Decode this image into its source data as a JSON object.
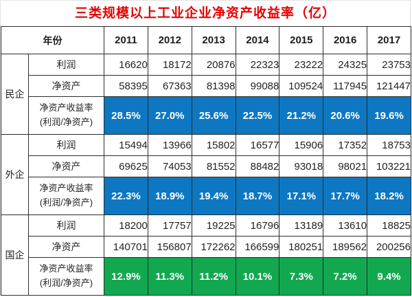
{
  "title": "三类规模以上工业企业净资产收益率（亿）",
  "colors": {
    "title_red": "#e60000",
    "roe_blue": "#0d77c2",
    "roe_green": "#12a850",
    "border": "#2b2b2b",
    "roe_text": "#ffffff"
  },
  "table": {
    "header": {
      "year_label": "年份",
      "years": [
        "2011",
        "2012",
        "2013",
        "2014",
        "2015",
        "2016",
        "2017"
      ]
    },
    "row_labels": {
      "profit": "利润",
      "net_assets": "净资产",
      "roe_line1": "净资产收益率",
      "roe_line2": "(利润/净资产)"
    },
    "groups": [
      {
        "name": "民企",
        "roe_color": "blue",
        "profit": [
          "16620",
          "18172",
          "20876",
          "22323",
          "23222",
          "24325",
          "23753"
        ],
        "net_assets": [
          "58395",
          "67363",
          "81398",
          "99088",
          "109524",
          "117945",
          "121447"
        ],
        "roe": [
          "28.5%",
          "27.0%",
          "25.6%",
          "22.5%",
          "21.2%",
          "20.6%",
          "19.6%"
        ]
      },
      {
        "name": "外企",
        "roe_color": "blue",
        "profit": [
          "15494",
          "13966",
          "15802",
          "16577",
          "15906",
          "17352",
          "18753"
        ],
        "net_assets": [
          "69625",
          "74053",
          "81552",
          "88482",
          "93018",
          "98021",
          "103221"
        ],
        "roe": [
          "22.3%",
          "18.9%",
          "19.4%",
          "18.7%",
          "17.1%",
          "17.7%",
          "18.2%"
        ]
      },
      {
        "name": "国企",
        "roe_color": "green",
        "profit": [
          "18200",
          "17757",
          "19225",
          "16796",
          "13189",
          "13610",
          "18825"
        ],
        "net_assets": [
          "140701",
          "156807",
          "172262",
          "166599",
          "180251",
          "189562",
          "200256"
        ],
        "roe": [
          "12.9%",
          "11.3%",
          "11.2%",
          "10.1%",
          "7.3%",
          "7.2%",
          "9.4%"
        ]
      }
    ]
  },
  "chart_data": {
    "type": "table",
    "title": "三类规模以上工业企业净资产收益率（亿）",
    "columns": [
      "年份",
      "2011",
      "2012",
      "2013",
      "2014",
      "2015",
      "2016",
      "2017"
    ],
    "series": [
      {
        "group": "民企",
        "metric": "利润",
        "values": [
          16620,
          18172,
          20876,
          22323,
          23222,
          24325,
          23753
        ]
      },
      {
        "group": "民企",
        "metric": "净资产",
        "values": [
          58395,
          67363,
          81398,
          99088,
          109524,
          117945,
          121447
        ]
      },
      {
        "group": "民企",
        "metric": "净资产收益率(利润/净资产)",
        "values": [
          "28.5%",
          "27.0%",
          "25.6%",
          "22.5%",
          "21.2%",
          "20.6%",
          "19.6%"
        ]
      },
      {
        "group": "外企",
        "metric": "利润",
        "values": [
          15494,
          13966,
          15802,
          16577,
          15906,
          17352,
          18753
        ]
      },
      {
        "group": "外企",
        "metric": "净资产",
        "values": [
          69625,
          74053,
          81552,
          88482,
          93018,
          98021,
          103221
        ]
      },
      {
        "group": "外企",
        "metric": "净资产收益率(利润/净资产)",
        "values": [
          "22.3%",
          "18.9%",
          "19.4%",
          "18.7%",
          "17.1%",
          "17.7%",
          "18.2%"
        ]
      },
      {
        "group": "国企",
        "metric": "利润",
        "values": [
          18200,
          17757,
          19225,
          16796,
          13189,
          13610,
          18825
        ]
      },
      {
        "group": "国企",
        "metric": "净资产",
        "values": [
          140701,
          156807,
          172262,
          166599,
          180251,
          189562,
          200256
        ]
      },
      {
        "group": "国企",
        "metric": "净资产收益率(利润/净资产)",
        "values": [
          "12.9%",
          "11.3%",
          "11.2%",
          "10.1%",
          "7.3%",
          "7.2%",
          "9.4%"
        ]
      }
    ]
  }
}
